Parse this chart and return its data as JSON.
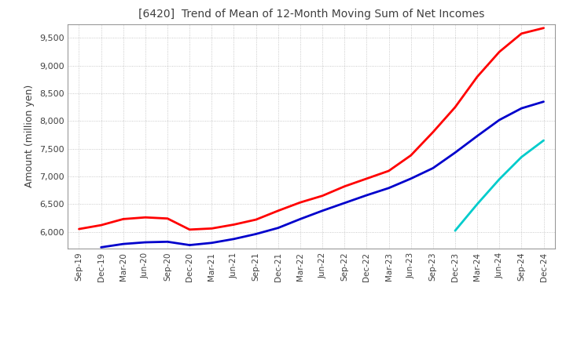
{
  "title": "[6420]  Trend of Mean of 12-Month Moving Sum of Net Incomes",
  "ylabel": "Amount (million yen)",
  "ylim": [
    5700,
    9750
  ],
  "yticks": [
    6000,
    6500,
    7000,
    7500,
    8000,
    8500,
    9000,
    9500
  ],
  "background_color": "#ffffff",
  "grid_color": "#bbbbbb",
  "title_color": "#404040",
  "x_labels": [
    "Sep-19",
    "Dec-19",
    "Mar-20",
    "Jun-20",
    "Sep-20",
    "Dec-20",
    "Mar-21",
    "Jun-21",
    "Sep-21",
    "Dec-21",
    "Mar-22",
    "Jun-22",
    "Sep-22",
    "Dec-22",
    "Mar-23",
    "Jun-23",
    "Sep-23",
    "Dec-23",
    "Mar-24",
    "Jun-24",
    "Sep-24",
    "Dec-24"
  ],
  "series": {
    "3 Years": {
      "color": "#ff0000",
      "data": [
        6050,
        6120,
        6230,
        6260,
        6240,
        6040,
        6060,
        6130,
        6220,
        6380,
        6530,
        6650,
        6820,
        6960,
        7100,
        7380,
        7800,
        8250,
        8800,
        9250,
        9580,
        9680
      ]
    },
    "5 Years": {
      "color": "#0000cc",
      "data": [
        null,
        5720,
        5780,
        5810,
        5820,
        5760,
        5800,
        5870,
        5960,
        6070,
        6230,
        6380,
        6520,
        6660,
        6790,
        6960,
        7150,
        7430,
        7730,
        8020,
        8230,
        8350
      ]
    },
    "7 Years": {
      "color": "#00cccc",
      "data": [
        null,
        null,
        null,
        null,
        null,
        null,
        null,
        null,
        null,
        null,
        null,
        null,
        null,
        null,
        null,
        null,
        null,
        6020,
        6500,
        6950,
        7350,
        7650
      ]
    },
    "10 Years": {
      "color": "#006600",
      "data": [
        null,
        null,
        null,
        null,
        null,
        null,
        null,
        null,
        null,
        null,
        null,
        null,
        null,
        null,
        null,
        null,
        null,
        null,
        null,
        null,
        null,
        null
      ]
    }
  }
}
